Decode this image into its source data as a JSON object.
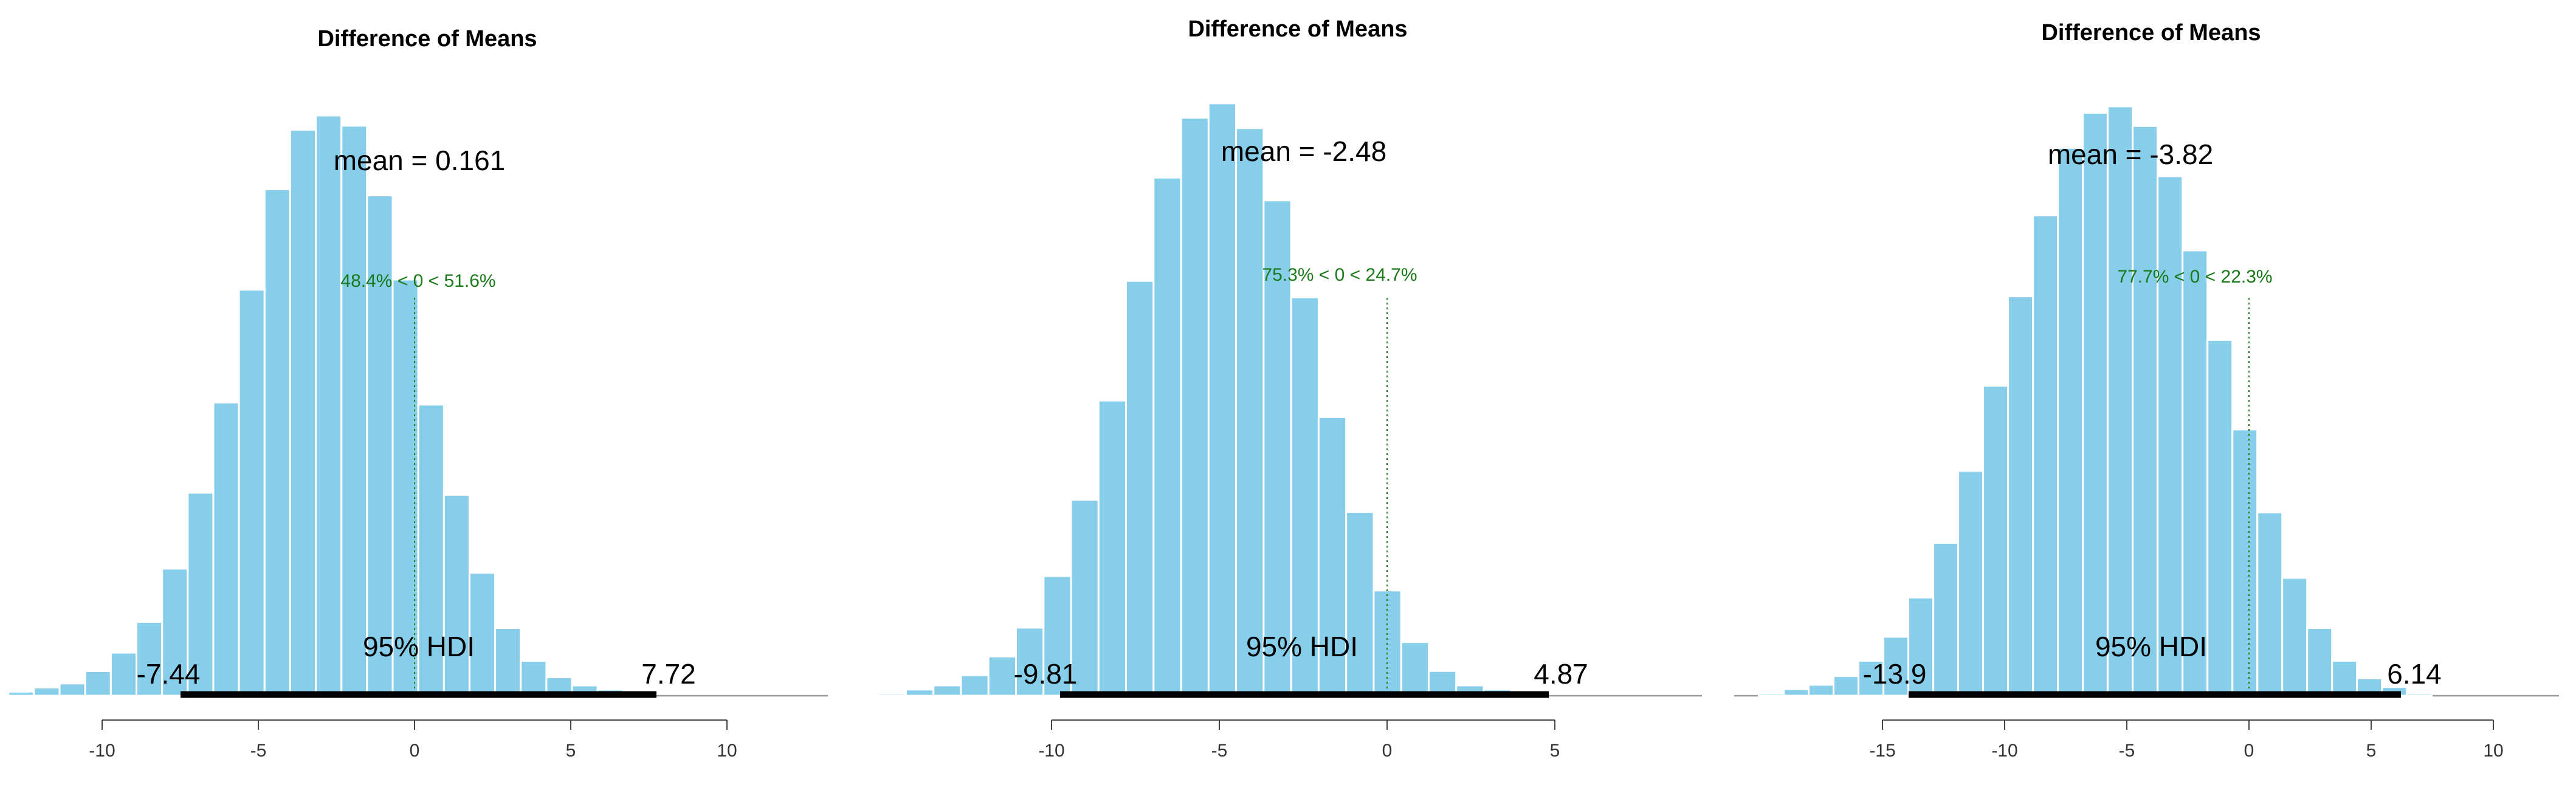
{
  "chart_data": [
    {
      "type": "bar",
      "title": "Difference of Means",
      "xlabel": "",
      "ylabel": "",
      "xlim": [
        -13,
        13
      ],
      "xticks": [
        -10,
        -5,
        0,
        5,
        10
      ],
      "xtick_labels": [
        "-10",
        "-5",
        "0",
        "5",
        "10"
      ],
      "bin_start": -13.0,
      "bin_width": 0.82,
      "values": [
        2,
        4,
        6,
        12,
        21,
        36,
        62,
        99,
        143,
        198,
        247,
        276,
        283,
        278,
        244,
        203,
        142,
        98,
        60,
        33,
        17,
        9,
        5,
        3,
        1
      ],
      "mean_label": "mean = 0.161",
      "comp_value": 0,
      "comp_label": "48.4% < 0 < 51.6%",
      "hdi_low": -7.44,
      "hdi_high": 7.72,
      "hdi_label": "95% HDI",
      "hdi_low_label": "-7.44",
      "hdi_high_label": "7.72"
    },
    {
      "type": "bar",
      "title": "Difference of Means",
      "xlabel": "",
      "ylabel": "",
      "xlim": [
        -16,
        10
      ],
      "xticks": [
        -10,
        -5,
        0,
        5
      ],
      "xtick_labels": [
        "-10",
        "-5",
        "0",
        "5"
      ],
      "bin_start": -15.16,
      "bin_width": 0.82,
      "values": [
        1,
        3,
        5,
        10,
        19,
        33,
        58,
        95,
        143,
        201,
        251,
        280,
        287,
        275,
        240,
        193,
        135,
        89,
        51,
        26,
        12,
        5,
        3,
        1
      ],
      "mean_label": "mean = -2.48",
      "comp_value": 0,
      "comp_label": "75.3% < 0 < 24.7%",
      "hdi_low": -9.81,
      "hdi_high": 4.87,
      "hdi_label": "95% HDI",
      "hdi_low_label": "-9.81",
      "hdi_high_label": "4.87"
    },
    {
      "type": "bar",
      "title": "Difference of Means",
      "xlabel": "",
      "ylabel": "",
      "xlim": [
        -20,
        13
      ],
      "xticks": [
        -15,
        -10,
        -5,
        0,
        5,
        10
      ],
      "xtick_labels": [
        "-15",
        "-10",
        "-5",
        "0",
        "5",
        "10"
      ],
      "bin_start": -20.06,
      "bin_width": 1.02,
      "values": [
        1,
        3,
        5,
        9,
        16,
        27,
        45,
        70,
        103,
        142,
        183,
        220,
        251,
        267,
        270,
        261,
        238,
        204,
        163,
        122,
        84,
        54,
        31,
        16,
        8,
        4,
        1
      ],
      "mean_label": "mean = -3.82",
      "comp_value": 0,
      "comp_label": "77.7% < 0 < 22.3%",
      "hdi_low": -13.9,
      "hdi_high": 6.14,
      "hdi_label": "95% HDI",
      "hdi_low_label": "-13.9",
      "hdi_high_label": "6.14"
    }
  ]
}
